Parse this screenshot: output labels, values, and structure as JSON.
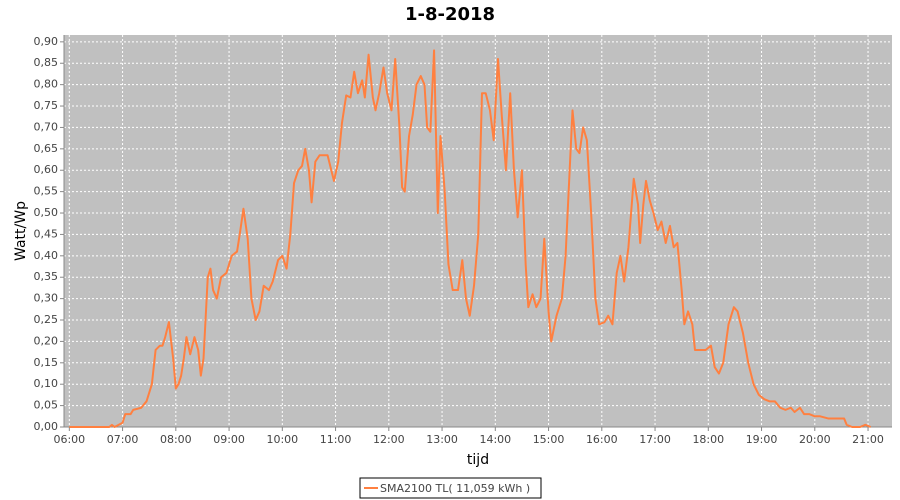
{
  "chart_data": {
    "type": "line",
    "title": "1-8-2018",
    "xlabel": "tijd",
    "ylabel": "Watt/Wp",
    "x": [
      6.0,
      6.75,
      6.8,
      6.85,
      7.0,
      7.05,
      7.15,
      7.2,
      7.35,
      7.45,
      7.55,
      7.62,
      7.7,
      7.75,
      7.8,
      7.87,
      7.95,
      8.0,
      8.05,
      8.1,
      8.15,
      8.2,
      8.27,
      8.35,
      8.42,
      8.47,
      8.52,
      8.6,
      8.65,
      8.7,
      8.77,
      8.85,
      8.95,
      9.05,
      9.15,
      9.2,
      9.27,
      9.35,
      9.42,
      9.5,
      9.57,
      9.65,
      9.75,
      9.82,
      9.92,
      10.0,
      10.08,
      10.15,
      10.22,
      10.3,
      10.37,
      10.43,
      10.5,
      10.55,
      10.62,
      10.7,
      10.85,
      10.92,
      10.97,
      11.05,
      11.12,
      11.2,
      11.28,
      11.35,
      11.42,
      11.5,
      11.55,
      11.62,
      11.7,
      11.75,
      11.82,
      11.9,
      11.97,
      12.05,
      12.12,
      12.2,
      12.25,
      12.3,
      12.38,
      12.45,
      12.52,
      12.6,
      12.67,
      12.72,
      12.78,
      12.85,
      12.92,
      12.97,
      13.05,
      13.12,
      13.2,
      13.3,
      13.38,
      13.45,
      13.52,
      13.6,
      13.68,
      13.75,
      13.82,
      13.9,
      13.97,
      14.05,
      14.12,
      14.2,
      14.28,
      14.35,
      14.42,
      14.5,
      14.57,
      14.62,
      14.7,
      14.77,
      14.85,
      14.92,
      15.0,
      15.05,
      15.15,
      15.25,
      15.32,
      15.45,
      15.52,
      15.58,
      15.65,
      15.72,
      15.8,
      15.88,
      15.95,
      16.05,
      16.12,
      16.2,
      16.28,
      16.35,
      16.42,
      16.5,
      16.6,
      16.68,
      16.72,
      16.78,
      16.83,
      16.9,
      16.97,
      17.05,
      17.12,
      17.2,
      17.28,
      17.35,
      17.42,
      17.5,
      17.55,
      17.62,
      17.7,
      17.75,
      17.85,
      17.95,
      18.05,
      18.12,
      18.2,
      18.28,
      18.38,
      18.48,
      18.55,
      18.65,
      18.75,
      18.85,
      18.95,
      19.05,
      19.15,
      19.25,
      19.35,
      19.45,
      19.55,
      19.62,
      19.72,
      19.8,
      19.9,
      20.0,
      20.1,
      20.25,
      20.4,
      20.55,
      20.6,
      20.7,
      20.85,
      20.95,
      21.05
    ],
    "series": [
      {
        "name": "SMA2100 TL( 11,059 kWh )",
        "color": "#ff8040",
        "values": [
          0,
          0,
          0.005,
          0,
          0.01,
          0.03,
          0.03,
          0.04,
          0.045,
          0.06,
          0.1,
          0.18,
          0.19,
          0.19,
          0.21,
          0.245,
          0.16,
          0.09,
          0.1,
          0.12,
          0.16,
          0.21,
          0.17,
          0.21,
          0.18,
          0.12,
          0.16,
          0.35,
          0.37,
          0.32,
          0.3,
          0.35,
          0.36,
          0.4,
          0.41,
          0.45,
          0.51,
          0.44,
          0.3,
          0.25,
          0.27,
          0.33,
          0.32,
          0.34,
          0.39,
          0.4,
          0.37,
          0.45,
          0.57,
          0.6,
          0.61,
          0.65,
          0.6,
          0.525,
          0.62,
          0.635,
          0.635,
          0.6,
          0.575,
          0.62,
          0.71,
          0.775,
          0.77,
          0.83,
          0.78,
          0.81,
          0.77,
          0.87,
          0.77,
          0.74,
          0.78,
          0.84,
          0.78,
          0.74,
          0.86,
          0.7,
          0.56,
          0.55,
          0.68,
          0.73,
          0.8,
          0.82,
          0.8,
          0.7,
          0.69,
          0.88,
          0.5,
          0.68,
          0.55,
          0.38,
          0.32,
          0.32,
          0.39,
          0.3,
          0.26,
          0.33,
          0.45,
          0.78,
          0.78,
          0.74,
          0.67,
          0.86,
          0.73,
          0.6,
          0.78,
          0.6,
          0.49,
          0.6,
          0.38,
          0.28,
          0.31,
          0.28,
          0.3,
          0.44,
          0.27,
          0.2,
          0.26,
          0.3,
          0.4,
          0.74,
          0.65,
          0.64,
          0.7,
          0.67,
          0.5,
          0.3,
          0.24,
          0.245,
          0.26,
          0.24,
          0.36,
          0.4,
          0.34,
          0.42,
          0.58,
          0.52,
          0.43,
          0.52,
          0.575,
          0.53,
          0.5,
          0.46,
          0.48,
          0.43,
          0.47,
          0.42,
          0.43,
          0.32,
          0.24,
          0.27,
          0.24,
          0.18,
          0.18,
          0.18,
          0.19,
          0.14,
          0.125,
          0.15,
          0.24,
          0.28,
          0.27,
          0.22,
          0.15,
          0.1,
          0.075,
          0.065,
          0.06,
          0.06,
          0.045,
          0.04,
          0.045,
          0.035,
          0.045,
          0.03,
          0.03,
          0.025,
          0.025,
          0.02,
          0.02,
          0.02,
          0.005,
          0,
          0,
          0.005,
          0
        ]
      }
    ],
    "xlim": [
      5.9,
      21.45
    ],
    "ylim": [
      0,
      0.916
    ],
    "xticks": [
      {
        "value": 6,
        "label": "06:00"
      },
      {
        "value": 7,
        "label": "07:00"
      },
      {
        "value": 8,
        "label": "08:00"
      },
      {
        "value": 9,
        "label": "09:00"
      },
      {
        "value": 10,
        "label": "10:00"
      },
      {
        "value": 11,
        "label": "11:00"
      },
      {
        "value": 12,
        "label": "12:00"
      },
      {
        "value": 13,
        "label": "13:00"
      },
      {
        "value": 14,
        "label": "14:00"
      },
      {
        "value": 15,
        "label": "15:00"
      },
      {
        "value": 16,
        "label": "16:00"
      },
      {
        "value": 17,
        "label": "17:00"
      },
      {
        "value": 18,
        "label": "18:00"
      },
      {
        "value": 19,
        "label": "19:00"
      },
      {
        "value": 20,
        "label": "20:00"
      },
      {
        "value": 21,
        "label": "21:00"
      }
    ],
    "yticks": [
      {
        "value": 0,
        "label": "0,00"
      },
      {
        "value": 0.05,
        "label": "0,05"
      },
      {
        "value": 0.1,
        "label": "0,10"
      },
      {
        "value": 0.15,
        "label": "0,15"
      },
      {
        "value": 0.2,
        "label": "0,20"
      },
      {
        "value": 0.25,
        "label": "0,25"
      },
      {
        "value": 0.3,
        "label": "0,30"
      },
      {
        "value": 0.35,
        "label": "0,35"
      },
      {
        "value": 0.4,
        "label": "0,40"
      },
      {
        "value": 0.45,
        "label": "0,45"
      },
      {
        "value": 0.5,
        "label": "0,50"
      },
      {
        "value": 0.55,
        "label": "0,55"
      },
      {
        "value": 0.6,
        "label": "0,60"
      },
      {
        "value": 0.65,
        "label": "0,65"
      },
      {
        "value": 0.7,
        "label": "0,70"
      },
      {
        "value": 0.75,
        "label": "0,75"
      },
      {
        "value": 0.8,
        "label": "0,80"
      },
      {
        "value": 0.85,
        "label": "0,85"
      },
      {
        "value": 0.9,
        "label": "0,90"
      }
    ],
    "grid": true,
    "plot_background": "#c0c0c0",
    "grid_color": "#ffffff"
  }
}
